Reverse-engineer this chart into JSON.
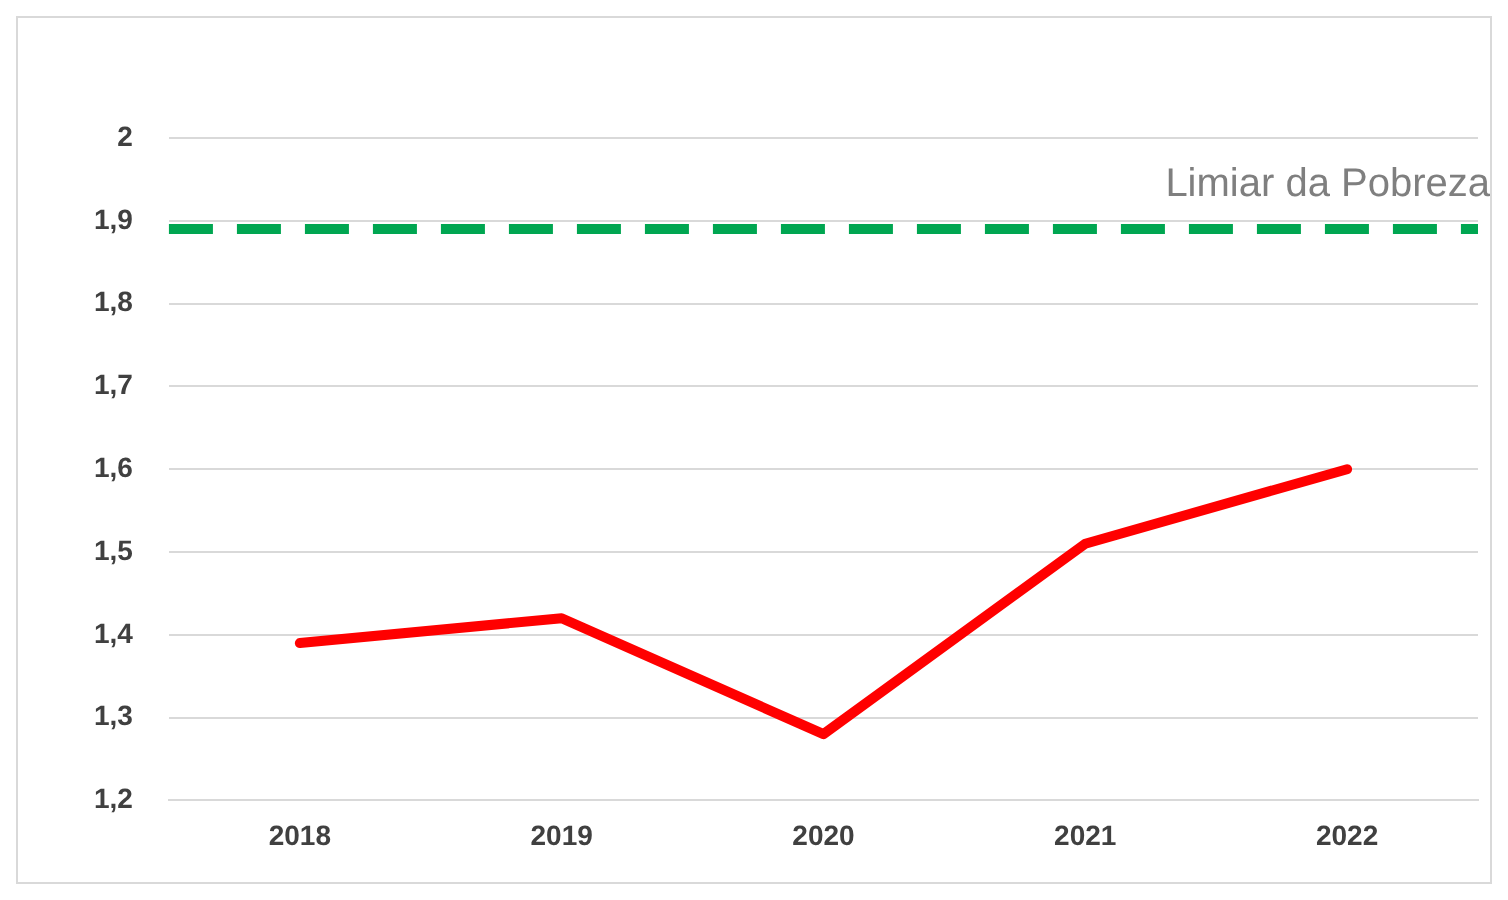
{
  "chart_data": {
    "type": "line",
    "categories": [
      "2018",
      "2019",
      "2020",
      "2021",
      "2022"
    ],
    "series": [
      {
        "color": "#ff0000",
        "values": [
          1.39,
          1.42,
          1.28,
          1.51,
          1.6
        ]
      }
    ],
    "ylim": [
      1.2,
      2
    ],
    "yticks": [
      {
        "value": 1.2,
        "label": "1,2"
      },
      {
        "value": 1.3,
        "label": "1,3"
      },
      {
        "value": 1.4,
        "label": "1,4"
      },
      {
        "value": 1.5,
        "label": "1,5"
      },
      {
        "value": 1.6,
        "label": "1,6"
      },
      {
        "value": 1.7,
        "label": "1,7"
      },
      {
        "value": 1.8,
        "label": "1,8"
      },
      {
        "value": 1.9,
        "label": "1,9"
      },
      2
    ],
    "ref_lines": [
      {
        "axis": "y",
        "value": 1.89,
        "label": "Limiar da Pobreza",
        "color": "#00a651",
        "line_style": "dashed"
      }
    ],
    "grid": "y",
    "legend": false,
    "marker": "none",
    "line_style": "solid"
  }
}
